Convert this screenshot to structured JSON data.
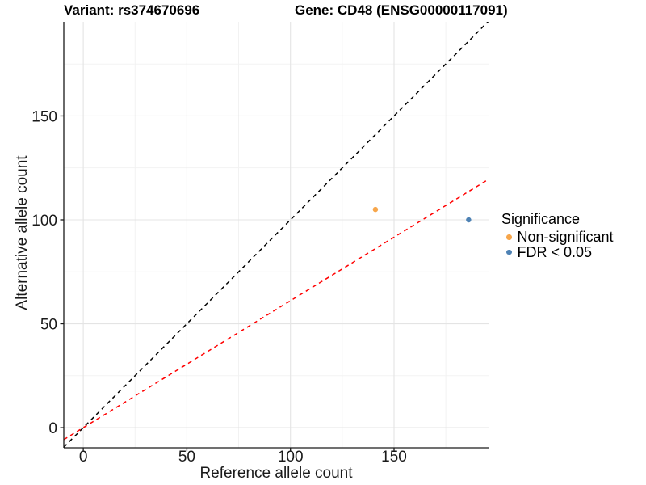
{
  "chart_data": {
    "type": "scatter",
    "title_left": "Variant: rs374670696",
    "title_right": "Gene: CD48 (ENSG00000117091)",
    "xlabel": "Reference allele count",
    "ylabel": "Alternative allele count",
    "xlim": [
      -9.4,
      195.6
    ],
    "ylim": [
      -9.7,
      195.3
    ],
    "x_ticks": [
      0,
      50,
      100,
      150
    ],
    "y_ticks": [
      0,
      50,
      100,
      150
    ],
    "x_minor_ticks": [
      25,
      75,
      125,
      175
    ],
    "y_minor_ticks": [
      25,
      75,
      125,
      175
    ],
    "grid": true,
    "points": [
      {
        "x": 141,
        "y": 105,
        "series": "Non-significant",
        "color": "#F7A64B"
      },
      {
        "x": 186,
        "y": 100,
        "series": "FDR < 0.05",
        "color": "#4E82B4"
      }
    ],
    "lines": [
      {
        "name": "identity-line",
        "slope": 1,
        "intercept": 0,
        "color": "#000000",
        "style": "dashed"
      },
      {
        "name": "expected-ratio-line",
        "slope": 0.611,
        "intercept": 0,
        "color": "#FF0000",
        "style": "dashed"
      }
    ],
    "legend": {
      "title": "Significance",
      "position": "right",
      "entries": [
        {
          "label": "Non-significant",
          "color": "#F7A64B"
        },
        {
          "label": "FDR < 0.05",
          "color": "#4E82B4"
        }
      ]
    },
    "colors": {
      "background": "#FFFFFF",
      "grid_major": "#E4E4E4",
      "grid_minor": "#F1F1F1",
      "axis": "#1a1a1a",
      "tick_label": "#1a1a1a"
    }
  }
}
